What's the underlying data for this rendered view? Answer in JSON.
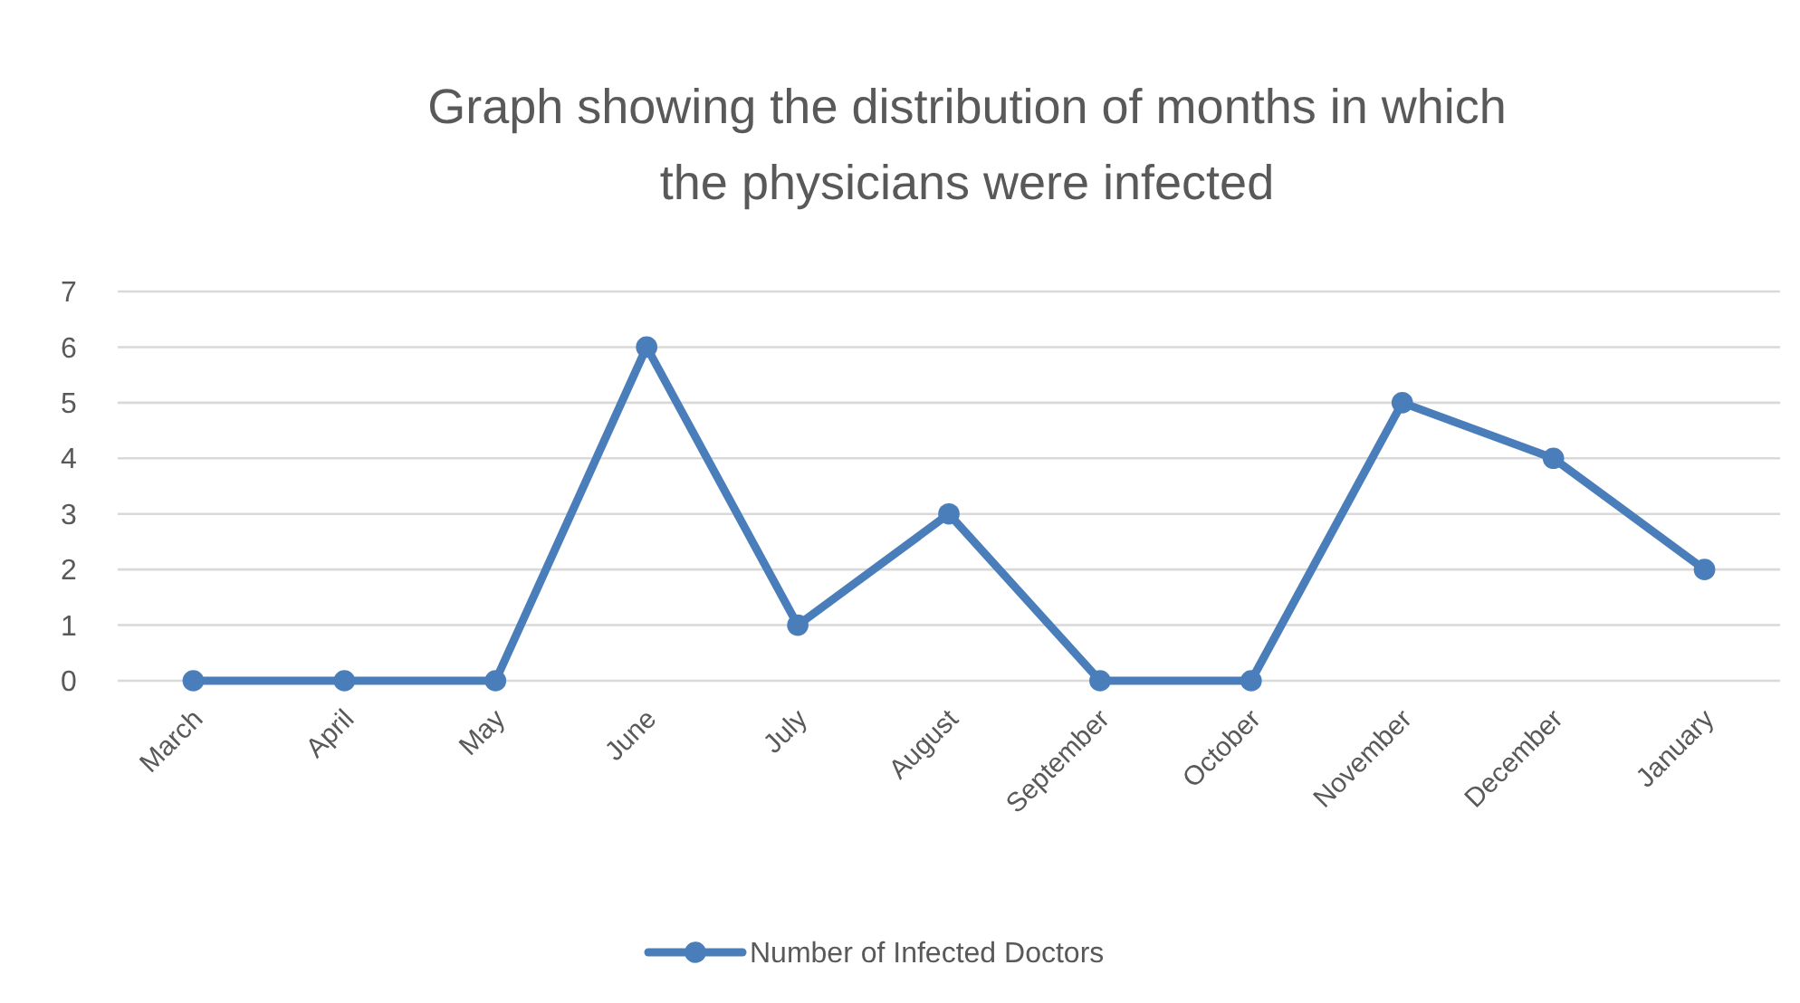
{
  "chart_data": {
    "type": "line",
    "title": "Graph showing the distribution of months in which the physicians were infected",
    "categories": [
      "March",
      "April",
      "May",
      "June",
      "July",
      "August",
      "September",
      "October",
      "November",
      "December",
      "January"
    ],
    "series": [
      {
        "name": "Number of Infected Doctors",
        "color": "#4a7ebb",
        "values": [
          0,
          0,
          0,
          6,
          1,
          3,
          0,
          0,
          5,
          4,
          2
        ]
      }
    ],
    "ylim": [
      0,
      7
    ],
    "yticks": [
      0,
      1,
      2,
      3,
      4,
      5,
      6,
      7
    ],
    "grid": "y",
    "legend": "bottom",
    "marker": "circle",
    "line_style": "solid"
  }
}
